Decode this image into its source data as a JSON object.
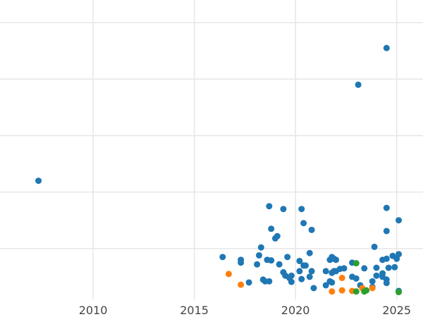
{
  "chart_data": {
    "type": "scatter",
    "title": "",
    "xlabel": "",
    "ylabel": "",
    "xlim": [
      2005.4,
      2026.3
    ],
    "ylim": [
      -0.2,
      5.1
    ],
    "grid": true,
    "legend": "none",
    "x_ticks": [
      2010,
      2015,
      2020,
      2025
    ],
    "x_tick_labels": [
      "2010",
      "2015",
      "2020",
      "2025"
    ],
    "y_gridlines": [
      0.7,
      1.7,
      2.7,
      3.7,
      4.7
    ],
    "colors": {
      "blue": "#1f77b4",
      "orange": "#ff7f0e",
      "green": "#2ca02c",
      "grid": "#e6e6e6",
      "tick_text": "#444444"
    },
    "series": [
      {
        "color": "#1f77b4",
        "points": [
          [
            2007.3,
            1.9
          ],
          [
            2016.4,
            0.55
          ],
          [
            2017.3,
            0.5
          ],
          [
            2017.3,
            0.45
          ],
          [
            2017.7,
            0.1
          ],
          [
            2018.1,
            0.42
          ],
          [
            2018.2,
            0.58
          ],
          [
            2018.3,
            0.72
          ],
          [
            2018.4,
            0.15
          ],
          [
            2018.5,
            0.12
          ],
          [
            2018.6,
            0.5
          ],
          [
            2018.7,
            0.12
          ],
          [
            2018.7,
            1.45
          ],
          [
            2018.8,
            0.49
          ],
          [
            2018.8,
            1.05
          ],
          [
            2019.0,
            0.88
          ],
          [
            2019.1,
            0.92
          ],
          [
            2019.2,
            0.42
          ],
          [
            2019.4,
            0.28
          ],
          [
            2019.4,
            1.4
          ],
          [
            2019.5,
            0.22
          ],
          [
            2019.6,
            0.55
          ],
          [
            2019.7,
            0.18
          ],
          [
            2019.8,
            0.11
          ],
          [
            2019.8,
            0.22
          ],
          [
            2020.2,
            0.3
          ],
          [
            2020.2,
            0.48
          ],
          [
            2020.3,
            0.16
          ],
          [
            2020.3,
            1.4
          ],
          [
            2020.4,
            0.4
          ],
          [
            2020.4,
            1.15
          ],
          [
            2020.5,
            0.4
          ],
          [
            2020.7,
            0.2
          ],
          [
            2020.7,
            0.62
          ],
          [
            2020.8,
            0.3
          ],
          [
            2020.8,
            1.03
          ],
          [
            2020.9,
            0.0
          ],
          [
            2021.5,
            0.3
          ],
          [
            2021.5,
            0.05
          ],
          [
            2021.7,
            0.5
          ],
          [
            2021.7,
            0.12
          ],
          [
            2021.8,
            0.1
          ],
          [
            2021.8,
            0.27
          ],
          [
            2021.8,
            0.55
          ],
          [
            2021.9,
            0.3
          ],
          [
            2021.9,
            0.52
          ],
          [
            2022.0,
            0.5
          ],
          [
            2022.0,
            0.3
          ],
          [
            2022.2,
            0.34
          ],
          [
            2022.4,
            0.35
          ],
          [
            2022.8,
            0.2
          ],
          [
            2022.8,
            0.45
          ],
          [
            2023.0,
            0.17
          ],
          [
            2023.1,
            3.6
          ],
          [
            2023.2,
            0.05
          ],
          [
            2023.4,
            0.35
          ],
          [
            2023.8,
            0.02
          ],
          [
            2023.8,
            0.12
          ],
          [
            2023.9,
            0.73
          ],
          [
            2024.0,
            0.22
          ],
          [
            2024.0,
            0.36
          ],
          [
            2024.3,
            0.2
          ],
          [
            2024.3,
            0.26
          ],
          [
            2024.3,
            0.5
          ],
          [
            2024.5,
            0.09
          ],
          [
            2024.5,
            0.15
          ],
          [
            2024.5,
            0.52
          ],
          [
            2024.5,
            1.01
          ],
          [
            2024.5,
            1.42
          ],
          [
            2024.5,
            4.25
          ],
          [
            2024.6,
            0.36
          ],
          [
            2024.8,
            0.57
          ],
          [
            2024.9,
            0.37
          ],
          [
            2025.0,
            0.52
          ],
          [
            2025.1,
            -0.05
          ],
          [
            2025.1,
            1.2
          ],
          [
            2025.1,
            0.6
          ]
        ]
      },
      {
        "color": "#ff7f0e",
        "points": [
          [
            2016.7,
            0.25
          ],
          [
            2017.3,
            0.06
          ],
          [
            2021.8,
            -0.06
          ],
          [
            2022.3,
            0.18
          ],
          [
            2022.3,
            -0.04
          ],
          [
            2022.8,
            -0.05
          ],
          [
            2023.3,
            0.0
          ],
          [
            2023.8,
            0.0
          ]
        ]
      },
      {
        "color": "#2ca02c",
        "points": [
          [
            2023.0,
            0.44
          ],
          [
            2023.0,
            -0.06
          ],
          [
            2023.4,
            -0.06
          ],
          [
            2023.5,
            -0.04
          ],
          [
            2025.1,
            -0.07
          ]
        ]
      }
    ]
  }
}
